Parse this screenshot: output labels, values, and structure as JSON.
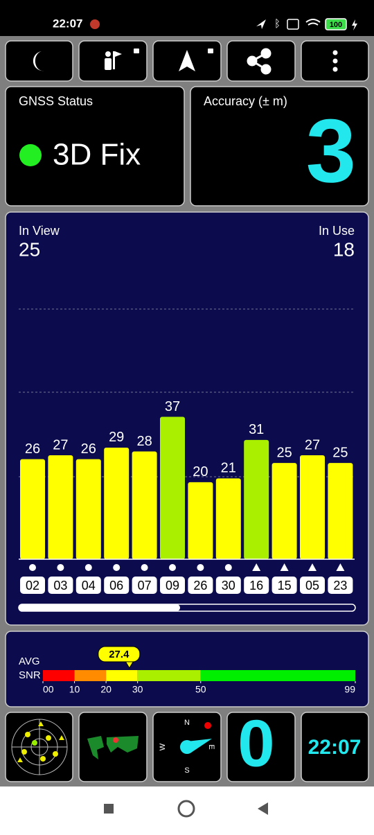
{
  "status_bar": {
    "time": "22:07",
    "battery": "100"
  },
  "gnss": {
    "title": "GNSS Status",
    "fix": "3D Fix"
  },
  "accuracy": {
    "label": "Accuracy (± m)",
    "value": "3"
  },
  "satellites": {
    "in_view_label": "In View",
    "in_view": "25",
    "in_use_label": "In Use",
    "in_use": "18"
  },
  "chart_data": {
    "type": "bar",
    "categories": [
      "02",
      "03",
      "04",
      "06",
      "07",
      "09",
      "26",
      "30",
      "16",
      "15",
      "05",
      "23"
    ],
    "values": [
      26,
      27,
      26,
      29,
      28,
      37,
      20,
      21,
      31,
      25,
      27,
      25
    ],
    "markers": [
      "circle",
      "circle",
      "circle",
      "circle",
      "circle",
      "circle",
      "circle",
      "circle",
      "triangle",
      "triangle",
      "triangle",
      "triangle"
    ],
    "ylim": [
      0,
      65
    ]
  },
  "snr": {
    "label_top": "AVG",
    "label_bottom": "SNR",
    "avg": 27.4,
    "avg_label": "27.4",
    "xlim": [
      0,
      99
    ],
    "xticks": [
      {
        "value": 0,
        "label": "00"
      },
      10,
      20,
      30,
      50,
      99
    ],
    "segments": [
      {
        "from": 0,
        "to": 10,
        "color": "#ff0000"
      },
      {
        "from": 10,
        "to": 20,
        "color": "#ff8c00"
      },
      {
        "from": 20,
        "to": 30,
        "color": "#ffff00"
      },
      {
        "from": 30,
        "to": 50,
        "color": "#aaee00"
      },
      {
        "from": 50,
        "to": 99,
        "color": "#00ee00"
      }
    ]
  },
  "tiles": {
    "compass": [
      "N",
      "E",
      "S",
      "W"
    ],
    "speed": "0",
    "clock": "22:07"
  }
}
